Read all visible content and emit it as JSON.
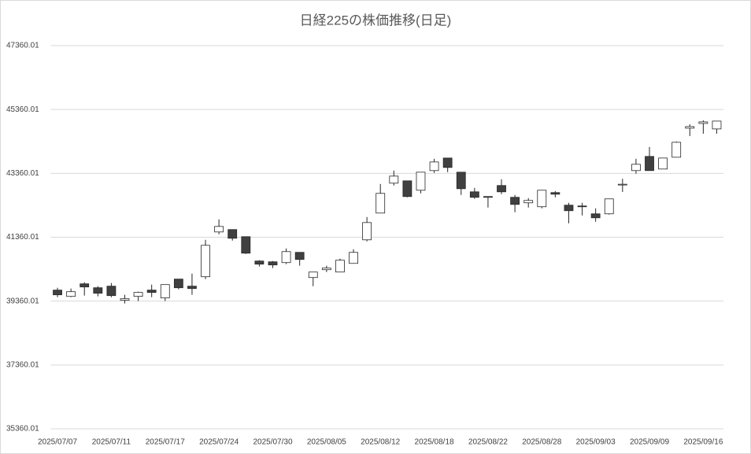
{
  "chart_data": {
    "type": "candlestick",
    "title": "日経225の株価推移(日足)",
    "categories": [
      "2025/07/07",
      null,
      null,
      null,
      "2025/07/11",
      null,
      null,
      null,
      "2025/07/17",
      null,
      null,
      null,
      "2025/07/24",
      null,
      null,
      null,
      "2025/07/30",
      null,
      null,
      null,
      "2025/08/05",
      null,
      null,
      null,
      "2025/08/12",
      null,
      null,
      null,
      "2025/08/18",
      null,
      null,
      null,
      "2025/08/22",
      null,
      null,
      null,
      "2025/08/28",
      null,
      null,
      null,
      "2025/09/03",
      null,
      null,
      null,
      "2025/09/09",
      null,
      null,
      null,
      "2025/09/16",
      null
    ],
    "open": [
      39704,
      39507,
      39901,
      39778,
      39827,
      39385,
      39508,
      39704,
      39459,
      40049,
      39827,
      40123,
      41525,
      41600,
      41377,
      40615,
      40590,
      40566,
      40886,
      40098,
      40344,
      40270,
      40541,
      41279,
      42117,
      43053,
      43126,
      42831,
      43447,
      43840,
      43397,
      42782,
      42635,
      42979,
      42610,
      42438,
      42315,
      42758,
      42364,
      42339,
      42093,
      42093,
      42996,
      43447,
      43890,
      43496,
      43865,
      44775,
      44923,
      44751
    ],
    "high": [
      39778,
      39753,
      39950,
      39827,
      39926,
      39557,
      39655,
      39877,
      39877,
      40049,
      40221,
      41279,
      41919,
      41600,
      41377,
      40640,
      40615,
      41008,
      40886,
      40270,
      40468,
      40689,
      40984,
      41993,
      43028,
      43447,
      43126,
      43397,
      43816,
      43840,
      43397,
      42905,
      42635,
      43176,
      42684,
      42585,
      42832,
      42807,
      42438,
      42438,
      42265,
      42561,
      43193,
      43816,
      44185,
      43840,
      44357,
      44898,
      45021,
      44997
    ],
    "low": [
      39483,
      39483,
      39532,
      39508,
      39483,
      39286,
      39360,
      39483,
      39360,
      39729,
      39557,
      40049,
      41451,
      41254,
      40836,
      40443,
      40394,
      40517,
      40468,
      39827,
      40270,
      40270,
      40541,
      41230,
      42117,
      42979,
      42610,
      42733,
      43373,
      43397,
      42684,
      42561,
      42290,
      42708,
      42142,
      42290,
      42265,
      42610,
      41796,
      42043,
      41845,
      42068,
      42778,
      43348,
      43447,
      43496,
      43865,
      44529,
      44603,
      44603
    ],
    "close": [
      39557,
      39655,
      39803,
      39606,
      39532,
      39434,
      39631,
      39631,
      39877,
      39778,
      39753,
      41107,
      41698,
      41328,
      40861,
      40517,
      40492,
      40910,
      40664,
      40270,
      40394,
      40640,
      40886,
      41820,
      42733,
      43274,
      42634,
      43397,
      43717,
      43545,
      42880,
      42610,
      42610,
      42782,
      42388,
      42512,
      42832,
      42708,
      42191,
      42315,
      41969,
      42561,
      43020,
      43644,
      43447,
      43840,
      44333,
      44825,
      44972,
      44997
    ],
    "up_color": "#ffffff",
    "down_color": "#404040",
    "line_color": "#262626",
    "ylim": [
      35360.01,
      47360.01
    ],
    "yticks": [
      35360.01,
      37360.01,
      39360.01,
      41360.01,
      43360.01,
      45360.01,
      47360.01
    ],
    "grid": true
  }
}
